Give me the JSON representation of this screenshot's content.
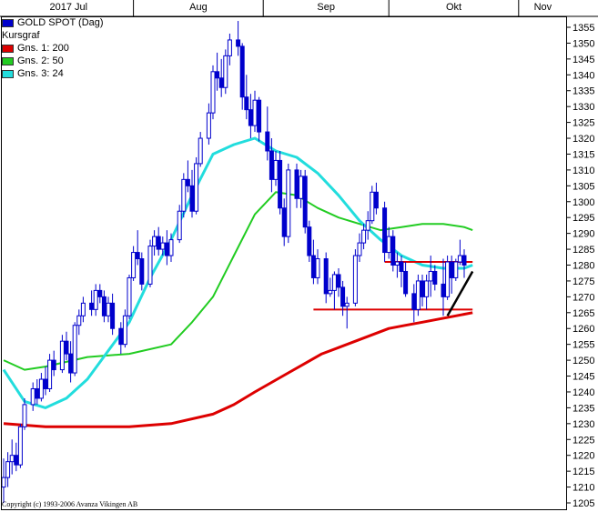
{
  "chart_data": {
    "type": "candlestick",
    "title": "GOLD SPOT (Dag)",
    "subtitle": "Kursgraf",
    "x_month_labels": [
      {
        "label": "2017 Jul",
        "day": 0
      },
      {
        "label": "Aug",
        "day": 31
      },
      {
        "label": "Sep",
        "day": 62
      },
      {
        "label": "Okt",
        "day": 92
      },
      {
        "label": "Nov",
        "day": 123
      }
    ],
    "x_range": [
      0,
      132
    ],
    "y_range": [
      1205,
      1360
    ],
    "y_ticks": [
      1205,
      1210,
      1215,
      1220,
      1225,
      1230,
      1235,
      1240,
      1245,
      1250,
      1255,
      1260,
      1265,
      1270,
      1275,
      1280,
      1285,
      1290,
      1295,
      1300,
      1305,
      1310,
      1315,
      1320,
      1325,
      1330,
      1335,
      1340,
      1345,
      1350,
      1355
    ],
    "grid": false,
    "legend_position": "top-left",
    "candles": [
      [
        0,
        1210,
        1219,
        1205,
        1213
      ],
      [
        1,
        1213,
        1221,
        1210,
        1218
      ],
      [
        2,
        1218,
        1225,
        1214,
        1220
      ],
      [
        3,
        1220,
        1224,
        1215,
        1217
      ],
      [
        4,
        1217,
        1230,
        1216,
        1229
      ],
      [
        5,
        1229,
        1238,
        1228,
        1236
      ],
      [
        7,
        1236,
        1243,
        1234,
        1241
      ],
      [
        8,
        1241,
        1244,
        1236,
        1238
      ],
      [
        9,
        1238,
        1246,
        1237,
        1244
      ],
      [
        10,
        1244,
        1248,
        1239,
        1241
      ],
      [
        11,
        1241,
        1252,
        1240,
        1250
      ],
      [
        12,
        1250,
        1253,
        1245,
        1247
      ],
      [
        14,
        1247,
        1258,
        1246,
        1256
      ],
      [
        15,
        1256,
        1259,
        1250,
        1252
      ],
      [
        16,
        1252,
        1256,
        1243,
        1246
      ],
      [
        17,
        1246,
        1262,
        1245,
        1261
      ],
      [
        18,
        1261,
        1266,
        1258,
        1264
      ],
      [
        19,
        1264,
        1270,
        1262,
        1268
      ],
      [
        21,
        1268,
        1272,
        1264,
        1266
      ],
      [
        22,
        1266,
        1274,
        1264,
        1272
      ],
      [
        23,
        1272,
        1274,
        1268,
        1270
      ],
      [
        24,
        1270,
        1272,
        1262,
        1264
      ],
      [
        25,
        1264,
        1270,
        1262,
        1268
      ],
      [
        26,
        1268,
        1271,
        1258,
        1260
      ],
      [
        28,
        1260,
        1262,
        1252,
        1255
      ],
      [
        29,
        1255,
        1266,
        1254,
        1264
      ],
      [
        30,
        1264,
        1277,
        1263,
        1276
      ],
      [
        31,
        1276,
        1286,
        1275,
        1284
      ],
      [
        32,
        1284,
        1291,
        1280,
        1282
      ],
      [
        33,
        1282,
        1284,
        1272,
        1274
      ],
      [
        35,
        1274,
        1288,
        1273,
        1286
      ],
      [
        36,
        1286,
        1291,
        1283,
        1289
      ],
      [
        37,
        1289,
        1292,
        1283,
        1285
      ],
      [
        38,
        1285,
        1289,
        1283,
        1287
      ],
      [
        39,
        1287,
        1291,
        1280,
        1283
      ],
      [
        40,
        1283,
        1290,
        1281,
        1288
      ],
      [
        42,
        1288,
        1299,
        1287,
        1297
      ],
      [
        43,
        1297,
        1309,
        1295,
        1307
      ],
      [
        44,
        1307,
        1313,
        1303,
        1305
      ],
      [
        45,
        1305,
        1310,
        1295,
        1297
      ],
      [
        46,
        1297,
        1314,
        1296,
        1312
      ],
      [
        47,
        1312,
        1322,
        1311,
        1320
      ],
      [
        49,
        1320,
        1331,
        1318,
        1328
      ],
      [
        50,
        1328,
        1343,
        1326,
        1341
      ],
      [
        51,
        1341,
        1347,
        1335,
        1339
      ],
      [
        52,
        1339,
        1345,
        1333,
        1336
      ],
      [
        53,
        1336,
        1348,
        1334,
        1346
      ],
      [
        54,
        1346,
        1353,
        1343,
        1351
      ],
      [
        56,
        1351,
        1357,
        1346,
        1349
      ],
      [
        57,
        1349,
        1350,
        1329,
        1333
      ],
      [
        58,
        1333,
        1340,
        1326,
        1329
      ],
      [
        59,
        1329,
        1334,
        1320,
        1324
      ],
      [
        60,
        1324,
        1335,
        1322,
        1332
      ],
      [
        61,
        1332,
        1333,
        1319,
        1322
      ],
      [
        63,
        1322,
        1330,
        1313,
        1316
      ],
      [
        64,
        1316,
        1320,
        1303,
        1307
      ],
      [
        65,
        1307,
        1316,
        1305,
        1313
      ],
      [
        66,
        1313,
        1316,
        1296,
        1298
      ],
      [
        67,
        1298,
        1301,
        1286,
        1289
      ],
      [
        68,
        1289,
        1312,
        1287,
        1310
      ],
      [
        70,
        1310,
        1312,
        1298,
        1301
      ],
      [
        71,
        1301,
        1310,
        1298,
        1308
      ],
      [
        72,
        1308,
        1310,
        1290,
        1292
      ],
      [
        73,
        1292,
        1294,
        1281,
        1283
      ],
      [
        74,
        1283,
        1288,
        1274,
        1276
      ],
      [
        75,
        1276,
        1285,
        1274,
        1282
      ],
      [
        77,
        1282,
        1284,
        1268,
        1271
      ],
      [
        78,
        1271,
        1276,
        1270,
        1272
      ],
      [
        79,
        1272,
        1278,
        1266,
        1277
      ],
      [
        80,
        1277,
        1279,
        1270,
        1273
      ],
      [
        81,
        1273,
        1275,
        1264,
        1267
      ],
      [
        82,
        1267,
        1270,
        1260,
        1268
      ],
      [
        84,
        1268,
        1285,
        1267,
        1283
      ],
      [
        85,
        1283,
        1290,
        1281,
        1287
      ],
      [
        86,
        1287,
        1293,
        1285,
        1291
      ],
      [
        87,
        1291,
        1297,
        1288,
        1294
      ],
      [
        88,
        1294,
        1305,
        1293,
        1303
      ],
      [
        89,
        1303,
        1306,
        1296,
        1298
      ],
      [
        91,
        1298,
        1300,
        1281,
        1284
      ],
      [
        92,
        1284,
        1292,
        1282,
        1289
      ],
      [
        93,
        1289,
        1291,
        1278,
        1280
      ],
      [
        94,
        1280,
        1284,
        1276,
        1281
      ],
      [
        95,
        1281,
        1283,
        1273,
        1278
      ],
      [
        96,
        1278,
        1281,
        1270,
        1271
      ],
      [
        98,
        1271,
        1274,
        1262,
        1266
      ],
      [
        99,
        1266,
        1277,
        1264,
        1275
      ],
      [
        100,
        1275,
        1277,
        1267,
        1270
      ],
      [
        101,
        1270,
        1277,
        1266,
        1275
      ],
      [
        102,
        1275,
        1283,
        1270,
        1278
      ],
      [
        103,
        1278,
        1280,
        1272,
        1274
      ],
      [
        105,
        1274,
        1282,
        1264,
        1270
      ],
      [
        106,
        1270,
        1283,
        1269,
        1281
      ],
      [
        107,
        1281,
        1283,
        1271,
        1276
      ],
      [
        108,
        1276,
        1282,
        1275,
        1281
      ],
      [
        109,
        1281,
        1288,
        1280,
        1283
      ],
      [
        110,
        1283,
        1285,
        1276,
        1280
      ]
    ],
    "series": [
      {
        "name": "Gns. 1: 200",
        "color": "#dd0000",
        "x": [
          0,
          10,
          20,
          30,
          40,
          50,
          55,
          60,
          64,
          68,
          72,
          76,
          80,
          84,
          88,
          92,
          96,
          100,
          104,
          108,
          112
        ],
        "values": [
          1230,
          1229,
          1229,
          1229,
          1230,
          1233,
          1236,
          1240,
          1243,
          1246,
          1249,
          1252,
          1254,
          1256,
          1258,
          1260,
          1261,
          1262,
          1263,
          1264,
          1265
        ]
      },
      {
        "name": "Gns. 2: 50",
        "color": "#22cc22",
        "x": [
          0,
          5,
          10,
          20,
          30,
          40,
          45,
          50,
          55,
          60,
          65,
          70,
          75,
          80,
          85,
          90,
          95,
          100,
          105,
          110,
          112
        ],
        "values": [
          1250,
          1247,
          1248,
          1251,
          1252,
          1255,
          1262,
          1270,
          1283,
          1296,
          1303,
          1302,
          1298,
          1295,
          1293,
          1291,
          1292,
          1293,
          1293,
          1292,
          1291
        ]
      },
      {
        "name": "Gns. 3: 24",
        "color": "#22dddd",
        "x": [
          0,
          5,
          10,
          15,
          20,
          25,
          30,
          35,
          40,
          45,
          50,
          55,
          60,
          65,
          70,
          75,
          80,
          85,
          90,
          95,
          100,
          105,
          110,
          112
        ],
        "values": [
          1247,
          1237,
          1235,
          1238,
          1244,
          1253,
          1262,
          1276,
          1288,
          1302,
          1315,
          1318,
          1320,
          1316,
          1314,
          1309,
          1302,
          1294,
          1288,
          1283,
          1280,
          1279,
          1279,
          1280
        ]
      }
    ],
    "annotations": [
      {
        "type": "hline",
        "color": "#dd0000",
        "x1": 74,
        "x2": 112,
        "y": 1266
      },
      {
        "type": "hline",
        "color": "#dd0000",
        "x1": 91,
        "x2": 112,
        "y": 1281
      },
      {
        "type": "trendline",
        "color": "#000000",
        "x1": 106,
        "x2": 112,
        "y1": 1264,
        "y2": 1278
      }
    ],
    "copyright": "Copyright (c) 1993-2006 Avanza Vikingen AB"
  }
}
